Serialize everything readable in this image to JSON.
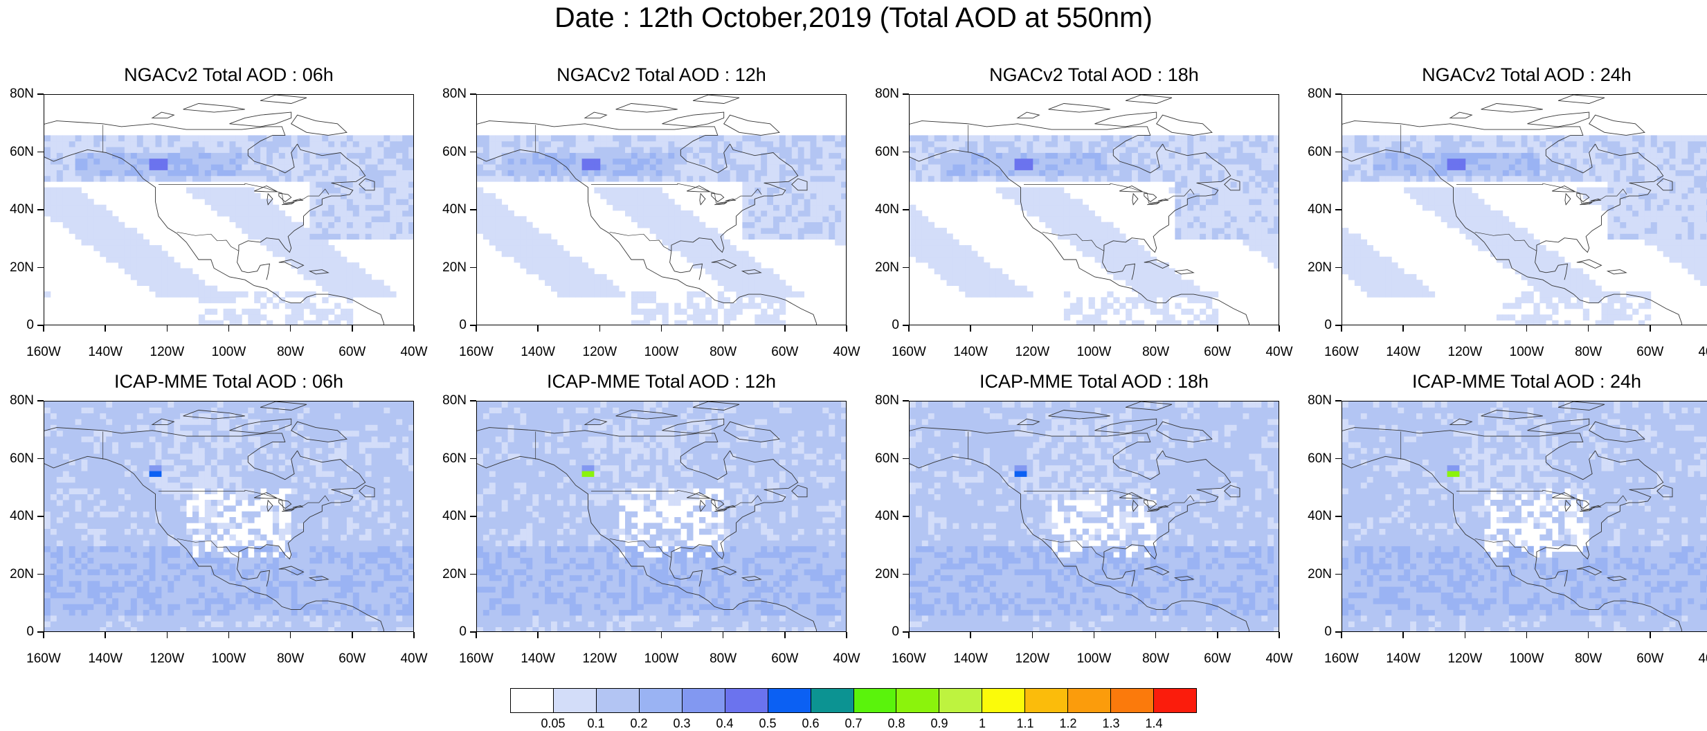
{
  "figure": {
    "title": "Date : 12th October,2019 (Total AOD at 550nm)"
  },
  "panels": [
    {
      "title": "NGACv2 Total AOD : 06h",
      "model": "NGACv2",
      "hour": "06h"
    },
    {
      "title": "NGACv2 Total AOD : 12h",
      "model": "NGACv2",
      "hour": "12h"
    },
    {
      "title": "NGACv2 Total AOD : 18h",
      "model": "NGACv2",
      "hour": "18h"
    },
    {
      "title": "NGACv2 Total AOD : 24h",
      "model": "NGACv2",
      "hour": "24h"
    },
    {
      "title": "ICAP-MME Total AOD : 06h",
      "model": "ICAP-MME",
      "hour": "06h"
    },
    {
      "title": "ICAP-MME Total AOD : 12h",
      "model": "ICAP-MME",
      "hour": "12h"
    },
    {
      "title": "ICAP-MME Total AOD : 18h",
      "model": "ICAP-MME",
      "hour": "18h"
    },
    {
      "title": "ICAP-MME Total AOD : 24h",
      "model": "ICAP-MME",
      "hour": "24h"
    }
  ],
  "axes": {
    "lat_labels": [
      "80N",
      "60N",
      "40N",
      "20N",
      "0"
    ],
    "lon_labels": [
      "160W",
      "140W",
      "120W",
      "100W",
      "80W",
      "60W",
      "40W"
    ],
    "lat_range": [
      0,
      80
    ],
    "lon_range": [
      -160,
      -40
    ]
  },
  "colorbar": {
    "labels": [
      "0.05",
      "0.1",
      "0.2",
      "0.3",
      "0.4",
      "0.5",
      "0.6",
      "0.7",
      "0.8",
      "0.9",
      "1",
      "1.1",
      "1.2",
      "1.3",
      "1.4"
    ],
    "colors": [
      "#ffffff",
      "#d3ddf9",
      "#b3c5f3",
      "#9ab3f3",
      "#8298f1",
      "#6b73ee",
      "#0b60f3",
      "#0c9392",
      "#5af30c",
      "#8bf30c",
      "#bef33f",
      "#fbfb0a",
      "#fbbc0b",
      "#fb9c0c",
      "#fb7a0c",
      "#fb1c0c"
    ]
  }
}
